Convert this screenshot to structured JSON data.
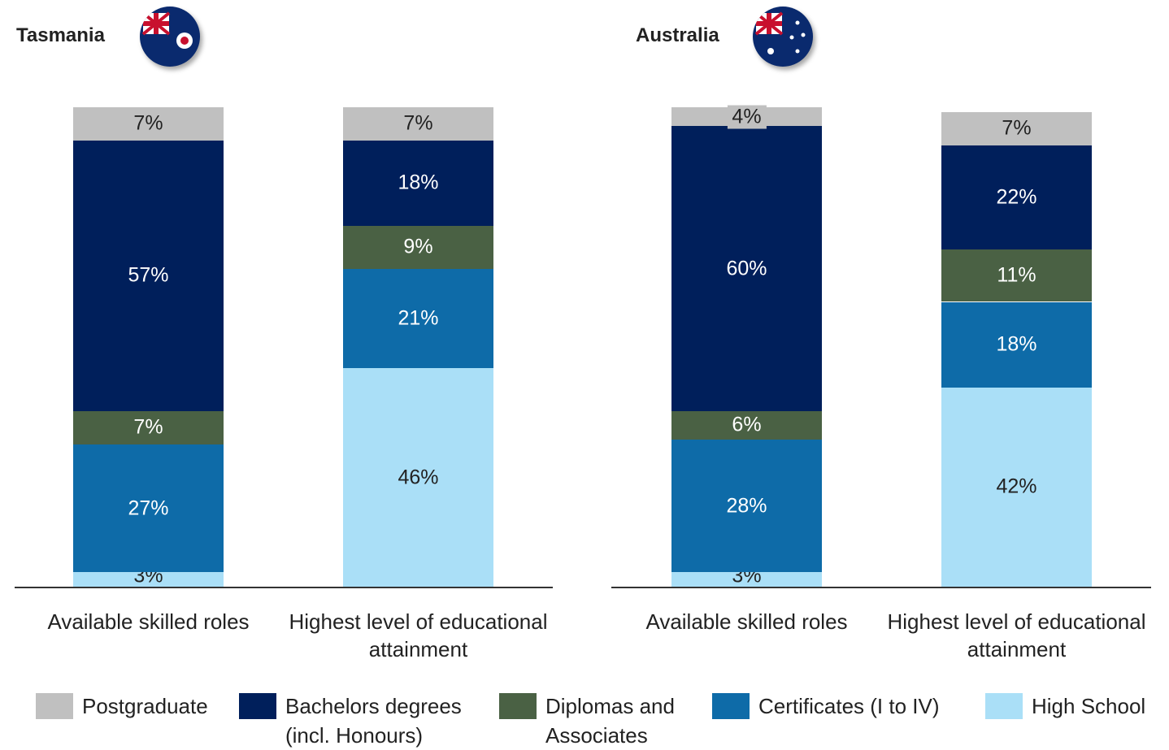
{
  "chart_data": [
    {
      "type": "stacked-bar",
      "title": "Tasmania",
      "categories": [
        "Available skilled roles",
        "Highest level of educational attainment"
      ],
      "series": [
        {
          "name": "Postgraduate",
          "color": "#c0c0c0",
          "values": [
            7,
            7
          ],
          "value_labels": [
            "7%",
            "7%"
          ]
        },
        {
          "name": "Bachelors degrees (incl. Honours)",
          "color": "#001f5b",
          "values": [
            57,
            18
          ],
          "value_labels": [
            "57%",
            "18%"
          ]
        },
        {
          "name": "Diplomas and Associates",
          "color": "#4a6144",
          "values": [
            7,
            9
          ],
          "value_labels": [
            "7%",
            "9%"
          ]
        },
        {
          "name": "Certificates (I to IV)",
          "color": "#0e6ba8",
          "values": [
            27,
            21
          ],
          "value_labels": [
            "27%",
            "21%"
          ]
        },
        {
          "name": "High School",
          "color": "#aadff7",
          "values": [
            3,
            46
          ],
          "value_labels": [
            "3%",
            "46%"
          ]
        }
      ]
    },
    {
      "type": "stacked-bar",
      "title": "Australia",
      "categories": [
        "Available skilled roles",
        "Highest level of educational attainment"
      ],
      "series": [
        {
          "name": "Postgraduate",
          "color": "#c0c0c0",
          "values": [
            4,
            7
          ],
          "value_labels": [
            "4%",
            "7%"
          ]
        },
        {
          "name": "Bachelors degrees (incl. Honours)",
          "color": "#001f5b",
          "values": [
            60,
            22
          ],
          "value_labels": [
            "60%",
            "22%"
          ]
        },
        {
          "name": "Diplomas and Associates",
          "color": "#4a6144",
          "values": [
            6,
            11
          ],
          "value_labels": [
            "6%",
            "11%"
          ]
        },
        {
          "name": "Certificates (I to IV)",
          "color": "#0e6ba8",
          "values": [
            28,
            18
          ],
          "value_labels": [
            "28%",
            "18%"
          ]
        },
        {
          "name": "High School",
          "color": "#aadff7",
          "values": [
            3,
            42
          ],
          "value_labels": [
            "3%",
            "42%"
          ]
        }
      ]
    }
  ]
}
